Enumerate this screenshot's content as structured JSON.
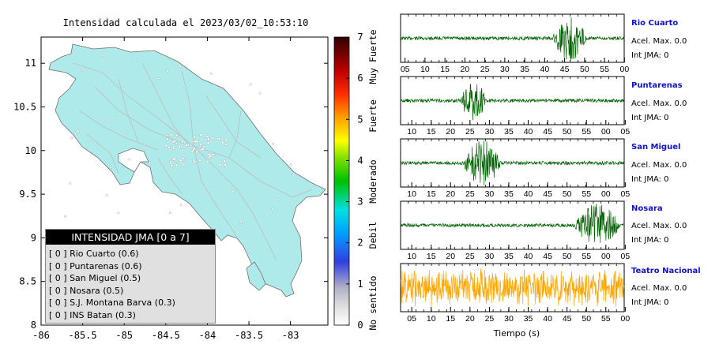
{
  "map_title": "Intensidad calculada el 2023/03/02_10:53:10",
  "legend": {
    "title": "INTENSIDAD JMA [0 a 7]",
    "items": [
      "[ 0 ]  Rio Cuarto (0.6)",
      "[ 0 ]  Puntarenas (0.6)",
      "[ 0 ]  San Miguel (0.5)",
      "[ 0 ]  Nosara (0.5)",
      "[ 0 ]  S.J. Montana Barva (0.3)",
      "[ 0 ]  INS Batan (0.3)"
    ]
  },
  "colorbar": {
    "ticks": [
      "0",
      "1",
      "2",
      "3",
      "4",
      "5",
      "6",
      "7"
    ],
    "categories": [
      "No sentido",
      "Debil",
      "Moderado",
      "Fuerte",
      "Muy Fuerte"
    ]
  },
  "stations": [
    {
      "name": "Rio Cuarto",
      "acc": "Acel. Max. 0.0",
      "jma": "Int JMA: 0",
      "color": "#006400",
      "ticks": [
        "05",
        "10",
        "15",
        "20",
        "25",
        "30",
        "35",
        "40",
        "45",
        "50",
        "55",
        "00"
      ],
      "first_tick_frac": 0.02,
      "tick_spacing": 0.0892,
      "burst": [
        0.68,
        0.83
      ]
    },
    {
      "name": "Puntarenas",
      "acc": "Acel. Max. 0.0",
      "jma": "Int JMA: 0",
      "color": "#006400",
      "ticks": [
        "10",
        "15",
        "20",
        "25",
        "30",
        "35",
        "40",
        "45",
        "50",
        "55",
        "00",
        "05"
      ],
      "first_tick_frac": 0.05,
      "tick_spacing": 0.0868,
      "burst": [
        0.27,
        0.38
      ]
    },
    {
      "name": "San Miguel",
      "acc": "Acel. Max. 0.0",
      "jma": "Int JMA: 0",
      "color": "#006400",
      "ticks": [
        "10",
        "15",
        "20",
        "25",
        "30",
        "35",
        "40",
        "45",
        "50",
        "55",
        "00",
        "05"
      ],
      "first_tick_frac": 0.05,
      "tick_spacing": 0.0868,
      "burst": [
        0.28,
        0.45
      ]
    },
    {
      "name": "Nosara",
      "acc": "Acel. Max. 0.0",
      "jma": "Int JMA: 0",
      "color": "#006400",
      "ticks": [
        "10",
        "15",
        "20",
        "25",
        "30",
        "35",
        "40",
        "45",
        "50",
        "55",
        "00",
        "05"
      ],
      "first_tick_frac": 0.05,
      "tick_spacing": 0.0868,
      "burst": [
        0.78,
        0.98
      ]
    },
    {
      "name": "Teatro Nacional",
      "acc": "Acel. Max. 0.0",
      "jma": "Int JMA: 0",
      "color": "#ffa500",
      "ticks": [
        "05",
        "10",
        "15",
        "20",
        "25",
        "30",
        "35",
        "40",
        "45",
        "50",
        "55",
        "00"
      ],
      "first_tick_frac": 0.05,
      "tick_spacing": 0.0868,
      "burst": [
        0,
        1
      ]
    }
  ],
  "xlabel": "Tiempo (s)",
  "chart_data": {
    "type": "scatter",
    "title": "Intensidad calculada el 2023/03/02_10:53:10",
    "xlabel": "",
    "ylabel": "",
    "xlim": [
      -86,
      -82.55
    ],
    "ylim": [
      8,
      11.3
    ],
    "x_ticks": [
      -86,
      -85.5,
      -85,
      -84.5,
      -84,
      -83.5,
      -83
    ],
    "y_ticks": [
      8,
      8.5,
      9,
      9.5,
      10,
      10.5,
      11
    ],
    "x_tick_labels": [
      "-86",
      "-85.5",
      "-85",
      "-84.5",
      "-84",
      "-83.5",
      "-83"
    ],
    "y_tick_labels": [
      "8",
      "8.5",
      "9",
      "9.5",
      "10",
      "10.5",
      "11"
    ],
    "colorbar_range": [
      0,
      7
    ],
    "grid": false
  }
}
